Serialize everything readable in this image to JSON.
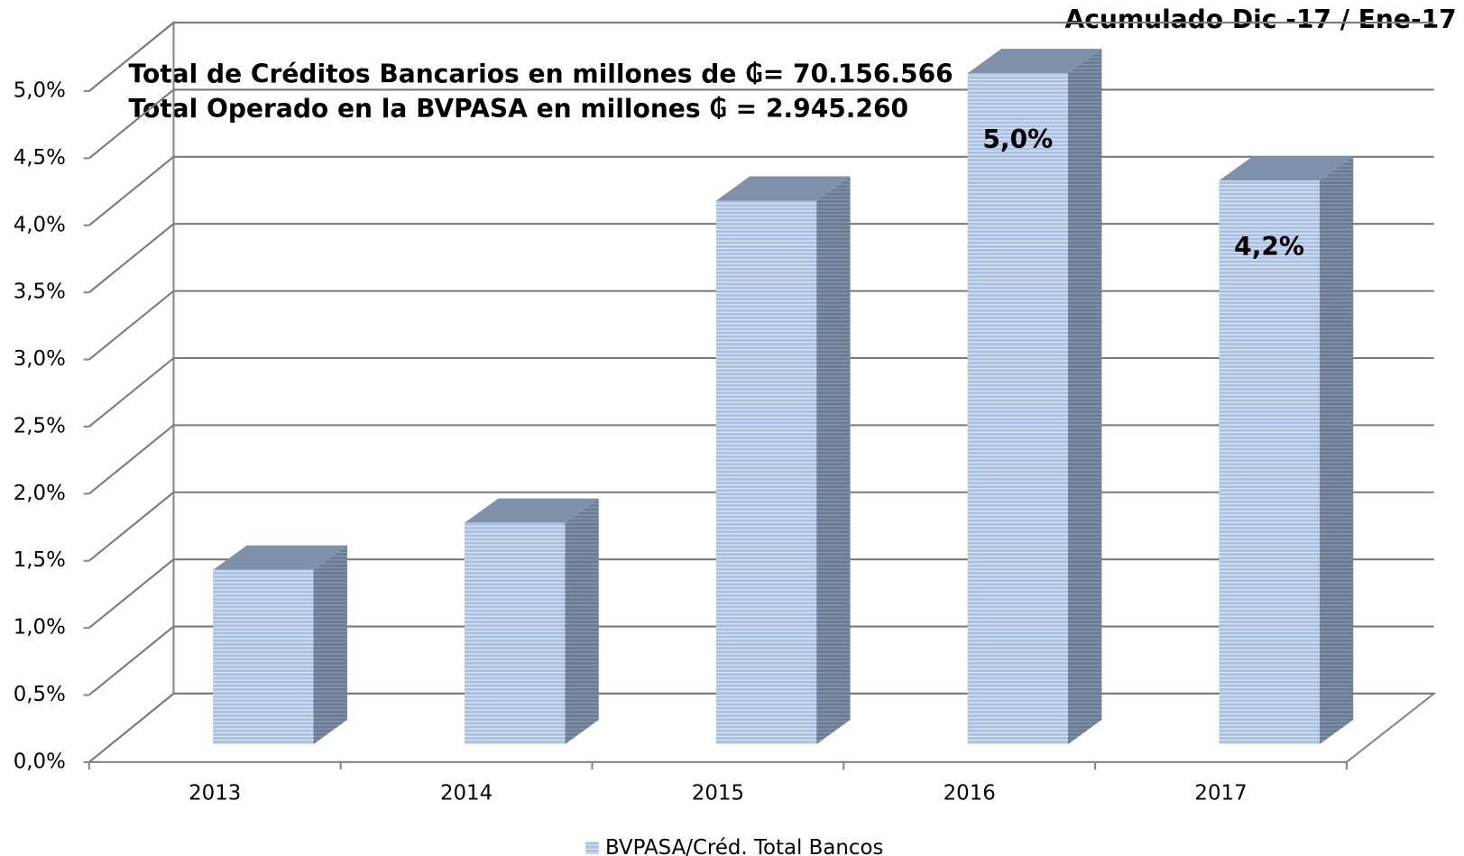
{
  "chart_data": {
    "type": "bar3d",
    "title": "Acumulado Dic -17 / Ene-17",
    "annotations": [
      "Total de Créditos Bancarios en millones de ₲= 70.156.566",
      "Total Operado en la BVPASA en millones ₲ = 2.945.260"
    ],
    "categories": [
      "2013",
      "2014",
      "2015",
      "2016",
      "2017"
    ],
    "series": [
      {
        "name": "BVPASA/Créd. Total Bancos",
        "color": "#a9c0e0",
        "values": [
          1.3,
          1.65,
          4.05,
          5.0,
          4.2
        ],
        "value_labels": [
          null,
          null,
          null,
          "5,0%",
          "4,2%"
        ]
      }
    ],
    "ylim": [
      0,
      5
    ],
    "yticks": [
      {
        "value": 0,
        "label": "0,0%"
      },
      {
        "value": 0.5,
        "label": "0,5%"
      },
      {
        "value": 1,
        "label": "1,0%"
      },
      {
        "value": 1.5,
        "label": "1,5%"
      },
      {
        "value": 2,
        "label": "2,0%"
      },
      {
        "value": 2.5,
        "label": "2,5%"
      },
      {
        "value": 3,
        "label": "3,0%"
      },
      {
        "value": 3.5,
        "label": "3,5%"
      },
      {
        "value": 4,
        "label": "4,0%"
      },
      {
        "value": 4.5,
        "label": "4,5%"
      },
      {
        "value": 5,
        "label": "5,0%"
      }
    ],
    "grid": true
  }
}
